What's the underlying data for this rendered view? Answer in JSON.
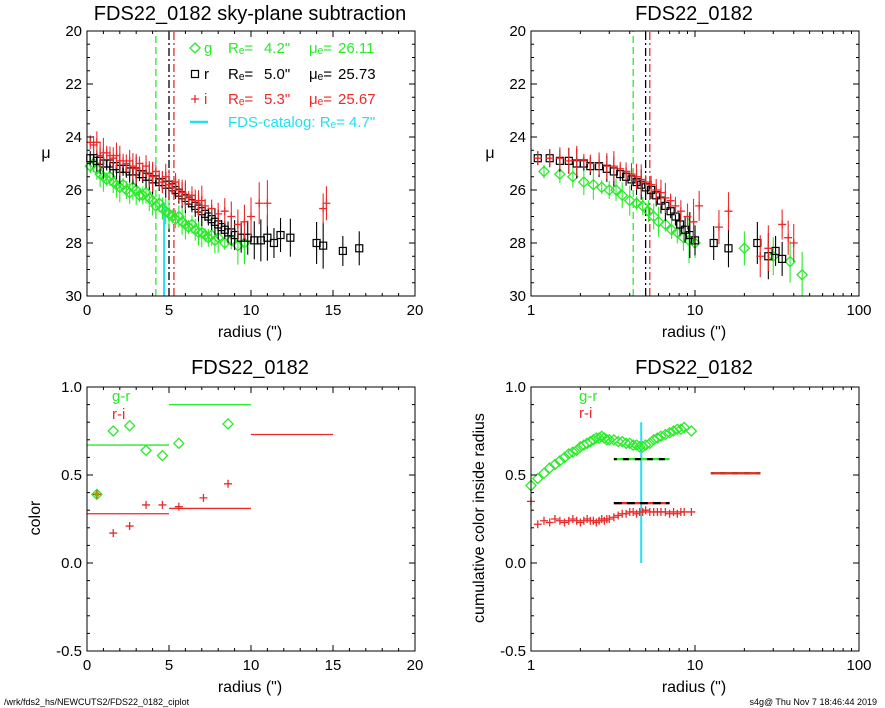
{
  "footer": {
    "left": "/wrk/fds2_hs/NEWCUTS2/FDS22_0182_ciplot",
    "right": "s4g@  Thu Nov  7 18:46:44 2019"
  },
  "colors": {
    "g": "#2aeb2a",
    "r": "#000000",
    "i": "#eb2a2a",
    "catalog": "#22e0f0"
  },
  "legend_top": {
    "g": {
      "sym": "g",
      "re_label": "Rₑ=",
      "re": "4.2\"",
      "mu_label": "μₑ=",
      "mu": "26.11"
    },
    "r": {
      "sym": "r",
      "re_label": "Rₑ=",
      "re": "5.0\"",
      "mu_label": "μₑ=",
      "mu": "25.73"
    },
    "i": {
      "sym": "i",
      "re_label": "Rₑ=",
      "re": "5.3\"",
      "mu_label": "μₑ=",
      "mu": "25.67"
    },
    "catalog": "FDS-catalog: Rₑ=   4.7\""
  },
  "legend_color": {
    "gr": "g-r",
    "ri": "r-i"
  },
  "chart_data": [
    {
      "type": "scatter",
      "title": "FDS22_0182 sky-plane subtraction",
      "xlabel": "radius (\")",
      "ylabel": "μ",
      "xlim": [
        0,
        20
      ],
      "ylim": [
        30,
        20
      ],
      "xticks": [
        "0",
        "5",
        "10",
        "15",
        "20"
      ],
      "yticks": [
        "20",
        "22",
        "24",
        "26",
        "28",
        "30"
      ],
      "vlines": [
        {
          "x": 4.2,
          "band": "g",
          "style": "dashed"
        },
        {
          "x": 5.0,
          "band": "r",
          "style": "dashdot"
        },
        {
          "x": 5.3,
          "band": "i",
          "style": "dashdot"
        },
        {
          "x": 4.7,
          "band": "catalog",
          "style": "solid",
          "from": 30,
          "to": 26.5
        }
      ],
      "series": [
        {
          "name": "g",
          "x": [
            0.2,
            0.4,
            0.6,
            0.8,
            1.0,
            1.2,
            1.4,
            1.6,
            1.8,
            2.0,
            2.2,
            2.4,
            2.6,
            2.8,
            3.0,
            3.2,
            3.4,
            3.6,
            3.8,
            4.0,
            4.2,
            4.4,
            4.6,
            4.8,
            5.0,
            5.2,
            5.4,
            5.6,
            5.8,
            6.0,
            6.2,
            6.4,
            6.6,
            6.8,
            7.0,
            7.2,
            7.4,
            7.6,
            7.8,
            8.0,
            8.4,
            8.8,
            9.2,
            9.6
          ],
          "y": [
            25.1,
            25.0,
            25.2,
            25.4,
            25.5,
            25.6,
            25.5,
            25.7,
            25.8,
            25.9,
            25.8,
            26.0,
            26.1,
            25.9,
            26.0,
            26.2,
            26.2,
            26.1,
            26.3,
            26.4,
            26.6,
            26.5,
            26.7,
            26.8,
            26.9,
            27.0,
            27.1,
            27.0,
            27.2,
            27.3,
            27.4,
            27.3,
            27.5,
            27.6,
            27.6,
            27.7,
            27.8,
            27.7,
            27.9,
            27.8,
            28.0,
            27.9,
            28.1,
            28.0
          ]
        },
        {
          "name": "r",
          "x": [
            0.2,
            0.4,
            0.6,
            0.8,
            1.0,
            1.2,
            1.4,
            1.6,
            1.8,
            2.0,
            2.2,
            2.4,
            2.6,
            2.8,
            3.0,
            3.2,
            3.4,
            3.6,
            3.8,
            4.0,
            4.2,
            4.4,
            4.6,
            4.8,
            5.0,
            5.2,
            5.4,
            5.6,
            5.8,
            6.0,
            6.2,
            6.4,
            6.6,
            6.8,
            7.0,
            7.2,
            7.4,
            7.6,
            7.8,
            8.0,
            8.2,
            8.4,
            8.6,
            8.8,
            9.0,
            9.4,
            9.8,
            10.2,
            10.6,
            11.0,
            11.4,
            11.8,
            12.4,
            14.0,
            14.4,
            15.6,
            16.6
          ],
          "y": [
            24.8,
            24.8,
            24.9,
            24.9,
            25.0,
            25.0,
            25.0,
            25.1,
            25.1,
            25.2,
            25.2,
            25.2,
            25.3,
            25.3,
            25.3,
            25.4,
            25.4,
            25.5,
            25.5,
            25.6,
            25.6,
            25.7,
            25.7,
            25.8,
            25.8,
            25.9,
            26.0,
            26.1,
            26.2,
            26.3,
            26.4,
            26.5,
            26.6,
            26.7,
            26.8,
            26.9,
            27.0,
            27.1,
            27.2,
            27.3,
            27.4,
            27.5,
            27.6,
            27.6,
            27.7,
            27.8,
            27.8,
            27.9,
            27.9,
            27.8,
            28.0,
            27.7,
            27.8,
            28.0,
            28.1,
            28.3,
            28.2
          ]
        },
        {
          "name": "i",
          "x": [
            0.2,
            0.4,
            0.6,
            0.8,
            1.0,
            1.2,
            1.4,
            1.6,
            1.8,
            2.0,
            2.2,
            2.4,
            2.6,
            2.8,
            3.0,
            3.2,
            3.4,
            3.6,
            3.8,
            4.0,
            4.2,
            4.4,
            4.6,
            4.8,
            5.0,
            5.2,
            5.4,
            5.6,
            5.8,
            6.0,
            6.2,
            6.4,
            6.6,
            6.8,
            7.0,
            7.2,
            7.6,
            8.0,
            8.4,
            8.8,
            9.2,
            9.6,
            10.0,
            10.5,
            11.0,
            14.4,
            14.6
          ],
          "y": [
            24.2,
            24.3,
            24.2,
            24.7,
            24.6,
            24.6,
            24.7,
            24.8,
            24.7,
            24.9,
            24.9,
            25.0,
            24.9,
            25.1,
            25.2,
            25.0,
            25.3,
            25.1,
            25.4,
            25.5,
            25.3,
            25.6,
            25.7,
            25.5,
            25.8,
            25.9,
            25.7,
            26.0,
            26.1,
            26.2,
            26.3,
            26.2,
            26.4,
            26.5,
            26.4,
            26.6,
            26.7,
            26.9,
            26.8,
            27.0,
            27.3,
            27.2,
            27.0,
            26.5,
            26.5,
            26.7,
            26.5
          ]
        }
      ]
    },
    {
      "type": "scatter",
      "title": "FDS22_0182",
      "xlabel": "radius (\")",
      "ylabel": "μ",
      "xscale": "log",
      "xlim": [
        1,
        100
      ],
      "ylim": [
        30,
        20
      ],
      "xticks": [
        "1",
        "10",
        "100"
      ],
      "yticks": [
        "20",
        "22",
        "24",
        "26",
        "28",
        "30"
      ],
      "vlines": [
        {
          "x": 4.2,
          "band": "g",
          "style": "dashed"
        },
        {
          "x": 5.0,
          "band": "r",
          "style": "dashdot"
        },
        {
          "x": 5.3,
          "band": "i",
          "style": "dashdot"
        }
      ],
      "series": [
        {
          "name": "g",
          "x": [
            1.2,
            1.5,
            1.8,
            2.1,
            2.4,
            2.7,
            3.0,
            3.3,
            3.6,
            4.0,
            4.4,
            4.8,
            5.2,
            5.6,
            6.0,
            6.6,
            7.2,
            7.8,
            8.5,
            9.2,
            10.0,
            20.0,
            30.0,
            38.0,
            45.0
          ],
          "y": [
            25.3,
            25.4,
            25.5,
            25.7,
            25.8,
            25.9,
            26.0,
            26.0,
            26.2,
            26.4,
            26.5,
            26.6,
            26.8,
            27.0,
            27.2,
            27.3,
            27.5,
            27.6,
            27.8,
            27.9,
            28.0,
            28.2,
            28.5,
            28.7,
            29.2
          ]
        },
        {
          "name": "r",
          "x": [
            1.1,
            1.3,
            1.5,
            1.7,
            1.9,
            2.1,
            2.3,
            2.6,
            2.9,
            3.2,
            3.5,
            3.8,
            4.1,
            4.4,
            4.7,
            5.0,
            5.4,
            5.8,
            6.2,
            6.6,
            7.1,
            7.6,
            8.1,
            8.7,
            9.3,
            10.0,
            13.0,
            16.0,
            24.0,
            28.0,
            31.0,
            34.0
          ],
          "y": [
            24.8,
            24.8,
            24.9,
            24.9,
            25.0,
            25.0,
            25.1,
            25.1,
            25.2,
            25.3,
            25.4,
            25.5,
            25.6,
            25.7,
            25.8,
            25.9,
            26.0,
            26.2,
            26.4,
            26.6,
            26.8,
            27.0,
            27.3,
            27.5,
            27.7,
            27.9,
            28.0,
            28.2,
            28.0,
            28.5,
            28.3,
            28.6
          ]
        },
        {
          "name": "i",
          "x": [
            1.1,
            1.3,
            1.5,
            1.7,
            1.9,
            2.1,
            2.3,
            2.6,
            2.9,
            3.2,
            3.5,
            3.8,
            4.1,
            4.4,
            4.7,
            5.0,
            5.4,
            5.8,
            6.2,
            6.6,
            7.1,
            7.6,
            8.2,
            9.0,
            9.8,
            10.6,
            14.0,
            16.0,
            25.0,
            28.0,
            34.0,
            37.0,
            40.0
          ],
          "y": [
            24.8,
            24.8,
            24.8,
            24.9,
            24.9,
            24.9,
            25.0,
            25.0,
            25.1,
            25.1,
            25.2,
            25.3,
            25.4,
            25.5,
            25.6,
            25.7,
            25.8,
            26.0,
            26.1,
            26.3,
            26.4,
            26.6,
            26.8,
            27.0,
            27.2,
            26.6,
            27.4,
            26.8,
            28.5,
            28.2,
            27.3,
            27.8,
            28.0
          ]
        }
      ]
    },
    {
      "type": "scatter",
      "title": "FDS22_0182",
      "xlabel": "radius (\")",
      "ylabel": "color",
      "xlim": [
        0,
        20
      ],
      "ylim": [
        -0.5,
        1.0
      ],
      "xticks": [
        "0",
        "5",
        "10",
        "15",
        "20"
      ],
      "yticks": [
        "-0.5",
        "0.0",
        "0.5",
        "1.0"
      ],
      "series": [
        {
          "name": "g-r",
          "marker": "diamond",
          "x": [
            0.6,
            1.6,
            2.6,
            3.6,
            4.6,
            5.6,
            8.6
          ],
          "y": [
            0.39,
            0.75,
            0.78,
            0.64,
            0.61,
            0.68,
            0.79
          ]
        },
        {
          "name": "r-i",
          "marker": "plus",
          "x": [
            0.6,
            1.6,
            2.6,
            3.6,
            4.6,
            5.6,
            7.1,
            8.6
          ],
          "y": [
            0.39,
            0.17,
            0.21,
            0.33,
            0.33,
            0.32,
            0.37,
            0.45
          ]
        }
      ],
      "segments": [
        {
          "band": "g",
          "x": [
            0,
            5
          ],
          "y": 0.67
        },
        {
          "band": "g",
          "x": [
            5,
            10
          ],
          "y": 0.9
        },
        {
          "band": "i",
          "x": [
            0,
            5
          ],
          "y": 0.28
        },
        {
          "band": "i",
          "x": [
            5,
            10
          ],
          "y": 0.31
        },
        {
          "band": "i",
          "x": [
            10,
            15
          ],
          "y": 0.73
        }
      ]
    },
    {
      "type": "scatter",
      "title": "FDS22_0182",
      "xlabel": "radius (\")",
      "ylabel": "cumulative color inside radius",
      "xscale": "log",
      "xlim": [
        1,
        100
      ],
      "ylim": [
        -0.5,
        1.0
      ],
      "xticks": [
        "1",
        "10",
        "100"
      ],
      "yticks": [
        "-0.5",
        "0.0",
        "0.5",
        "1.0"
      ],
      "vlines": [
        {
          "x": 4.7,
          "band": "catalog",
          "style": "solid",
          "from": 0.0,
          "to": 0.8
        }
      ],
      "series": [
        {
          "name": "g-r",
          "marker": "diamond",
          "x": [
            1.0,
            1.1,
            1.2,
            1.3,
            1.4,
            1.5,
            1.6,
            1.7,
            1.8,
            1.9,
            2.0,
            2.1,
            2.2,
            2.3,
            2.4,
            2.5,
            2.6,
            2.7,
            2.8,
            2.9,
            3.0,
            3.2,
            3.4,
            3.6,
            3.8,
            4.0,
            4.2,
            4.4,
            4.6,
            4.8,
            5.0,
            5.3,
            5.6,
            5.9,
            6.2,
            6.6,
            7.0,
            7.4,
            7.8,
            8.2,
            8.6,
            9.5
          ],
          "y": [
            0.44,
            0.48,
            0.51,
            0.54,
            0.56,
            0.58,
            0.6,
            0.62,
            0.63,
            0.64,
            0.66,
            0.67,
            0.68,
            0.69,
            0.7,
            0.71,
            0.71,
            0.72,
            0.71,
            0.7,
            0.7,
            0.7,
            0.69,
            0.69,
            0.68,
            0.68,
            0.67,
            0.67,
            0.66,
            0.66,
            0.67,
            0.68,
            0.7,
            0.71,
            0.72,
            0.73,
            0.74,
            0.75,
            0.76,
            0.76,
            0.77,
            0.75
          ]
        },
        {
          "name": "r-i",
          "marker": "plus",
          "x": [
            1.0,
            1.1,
            1.2,
            1.3,
            1.4,
            1.5,
            1.6,
            1.7,
            1.8,
            1.9,
            2.0,
            2.1,
            2.2,
            2.3,
            2.4,
            2.5,
            2.6,
            2.7,
            2.8,
            2.9,
            3.0,
            3.2,
            3.4,
            3.6,
            3.8,
            4.0,
            4.2,
            4.4,
            4.6,
            4.8,
            5.0,
            5.3,
            5.6,
            5.9,
            6.2,
            6.6,
            7.0,
            7.4,
            7.8,
            8.2,
            8.6,
            9.5
          ],
          "y": [
            0.35,
            0.22,
            0.24,
            0.23,
            0.25,
            0.24,
            0.23,
            0.24,
            0.25,
            0.24,
            0.23,
            0.24,
            0.25,
            0.24,
            0.24,
            0.23,
            0.24,
            0.25,
            0.24,
            0.25,
            0.25,
            0.26,
            0.27,
            0.28,
            0.28,
            0.29,
            0.29,
            0.28,
            0.29,
            0.29,
            0.3,
            0.29,
            0.29,
            0.29,
            0.29,
            0.29,
            0.28,
            0.29,
            0.28,
            0.29,
            0.29,
            0.29
          ]
        }
      ],
      "segments": [
        {
          "band": "g",
          "x": [
            3.2,
            7.0
          ],
          "y": 0.59
        },
        {
          "band": "i",
          "x": [
            3.2,
            7.0
          ],
          "y": 0.34
        },
        {
          "band": "g",
          "x": [
            12.5,
            25.0
          ],
          "y": 0.51
        },
        {
          "band": "i",
          "x": [
            12.5,
            25.0
          ],
          "y": 0.51
        }
      ]
    }
  ]
}
